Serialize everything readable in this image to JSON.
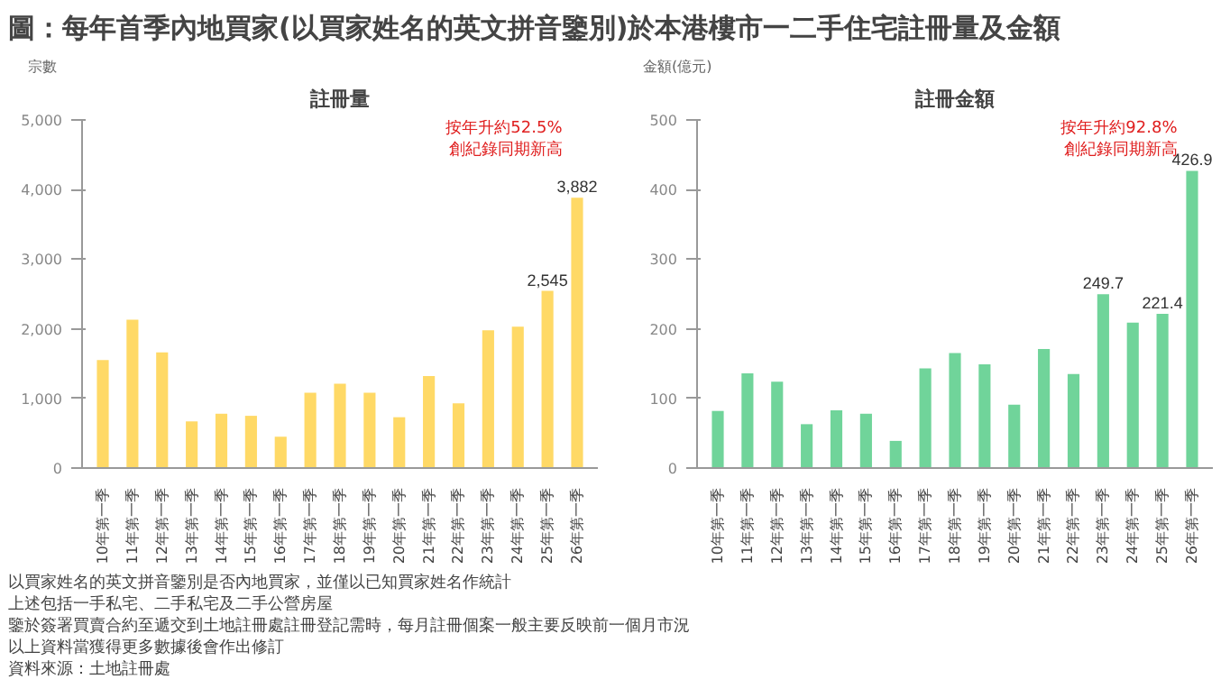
{
  "chart_data": [
    {
      "type": "other",
      "title": "圖：每年首季內地買家(以買家姓名的英文拼音鑒別)於本港樓市一二手住宅註冊量及金額",
      "annotations": [
        "以買家姓名的英文拼音鑒別是否內地買家，並僅以已知買家姓名作統計",
        "上述包括一手私宅、二手私宅及二手公營房屋",
        "鑒於簽署買賣合約至遞交到土地註冊處註冊登記需時，每月註冊個案一般主要反映前一個月市況",
        "以上資料當獲得更多數據後會作出修訂",
        "資料來源：土地註冊處"
      ]
    },
    {
      "type": "bar",
      "title": "註冊量",
      "ylabel": "宗數",
      "categories": [
        "10年第一季",
        "11年第一季",
        "12年第一季",
        "13年第一季",
        "14年第一季",
        "15年第一季",
        "16年第一季",
        "17年第一季",
        "18年第一季",
        "19年第一季",
        "20年第一季",
        "21年第一季",
        "22年第一季",
        "23年第一季",
        "24年第一季",
        "25年第一季",
        "26年第一季"
      ],
      "series": [
        {
          "color": "#ffd966",
          "values": [
            1550,
            2130,
            1660,
            670,
            780,
            750,
            450,
            1080,
            1210,
            1080,
            730,
            1320,
            930,
            1980,
            2030,
            2545,
            3882
          ]
        }
      ],
      "value_labels": [
        null,
        null,
        null,
        null,
        null,
        null,
        null,
        null,
        null,
        null,
        null,
        null,
        null,
        null,
        null,
        "2,545",
        "3,882"
      ],
      "ylim": [
        0,
        5000
      ],
      "yticks": [
        0,
        {
          "value": 1000,
          "label": "1,000"
        },
        {
          "value": 2000,
          "label": "2,000"
        },
        {
          "value": 3000,
          "label": "3,000"
        },
        {
          "value": 4000,
          "label": "4,000"
        },
        {
          "value": 5000,
          "label": "5,000"
        }
      ],
      "grid": false,
      "annotations": [
        "按年升約52.5%\n創紀錄同期新高"
      ]
    },
    {
      "type": "bar",
      "title": "註冊金額",
      "ylabel": "金額(億元)",
      "categories": [
        "10年第一季",
        "11年第一季",
        "12年第一季",
        "13年第一季",
        "14年第一季",
        "15年第一季",
        "16年第一季",
        "17年第一季",
        "18年第一季",
        "19年第一季",
        "20年第一季",
        "21年第一季",
        "22年第一季",
        "23年第一季",
        "24年第一季",
        "25年第一季",
        "26年第一季"
      ],
      "series": [
        {
          "color": "#70d49a",
          "values": [
            82,
            136,
            124,
            63,
            83,
            78,
            39,
            143,
            165,
            149,
            91,
            171,
            135,
            249.7,
            209,
            221.4,
            426.9
          ]
        }
      ],
      "value_labels": [
        null,
        null,
        null,
        null,
        null,
        null,
        null,
        null,
        null,
        null,
        null,
        null,
        null,
        "249.7",
        null,
        "221.4",
        "426.9"
      ],
      "ylim": [
        0,
        500
      ],
      "yticks": [
        0,
        100,
        200,
        300,
        400,
        500
      ],
      "grid": false,
      "annotations": [
        "按年升約92.8%\n創紀錄同期新高"
      ]
    }
  ]
}
